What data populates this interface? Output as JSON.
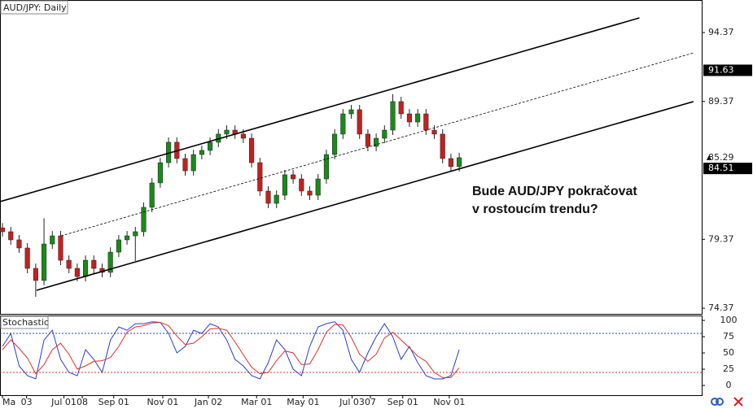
{
  "chart_data": [
    {
      "type": "candlestick",
      "title": "AUD/JPY: Daily",
      "annotation": [
        "Bude AUD/JPY pokračovat",
        "v rostoucím trendu?"
      ],
      "open": [
        80.2,
        79.92,
        79.33,
        78.74,
        77.26,
        76.38,
        79.03,
        79.62,
        77.85,
        77.26,
        76.67,
        77.85,
        77.26,
        76.97,
        78.44,
        79.33,
        79.62,
        79.92,
        81.69,
        83.46,
        84.93,
        86.41,
        85.23,
        84.34,
        85.52,
        85.82,
        86.41,
        87.0,
        87.29,
        87.0,
        86.7,
        84.93,
        82.87,
        81.98,
        82.57,
        84.05,
        83.75,
        82.87,
        82.57,
        83.75,
        85.52,
        87.0,
        88.47,
        88.77,
        87.0,
        86.11,
        86.7,
        87.29,
        89.36,
        88.47,
        87.88,
        88.47,
        87.29,
        87.0,
        85.23,
        84.64
      ],
      "high": [
        80.55,
        80.27,
        79.68,
        79.09,
        77.61,
        80.9,
        79.97,
        79.97,
        78.2,
        77.61,
        78.2,
        78.2,
        77.61,
        78.79,
        79.68,
        79.97,
        80.27,
        82.04,
        83.81,
        85.28,
        86.76,
        86.76,
        85.58,
        85.87,
        86.17,
        86.76,
        87.35,
        87.64,
        87.64,
        87.35,
        87.05,
        85.28,
        83.22,
        82.92,
        84.4,
        84.4,
        84.1,
        83.22,
        84.1,
        85.87,
        87.35,
        88.82,
        89.12,
        89.12,
        87.35,
        87.05,
        87.64,
        89.9,
        89.71,
        88.82,
        88.82,
        88.82,
        87.64,
        87.35,
        85.58,
        85.64
      ],
      "low": [
        79.57,
        78.98,
        78.39,
        76.91,
        75.2,
        76.03,
        78.68,
        77.5,
        76.91,
        76.32,
        76.32,
        76.91,
        76.62,
        76.62,
        78.09,
        78.98,
        77.8,
        79.57,
        81.34,
        83.11,
        84.58,
        84.88,
        83.99,
        83.99,
        85.17,
        85.47,
        86.06,
        86.65,
        86.65,
        86.35,
        84.58,
        82.52,
        81.63,
        81.63,
        82.22,
        83.4,
        82.52,
        82.22,
        82.22,
        83.4,
        85.17,
        86.65,
        88.12,
        86.65,
        85.76,
        85.76,
        86.35,
        86.94,
        88.12,
        87.53,
        87.53,
        86.94,
        86.65,
        84.88,
        84.29,
        84.29
      ],
      "close": [
        79.92,
        79.33,
        78.74,
        77.26,
        76.38,
        79.03,
        79.62,
        77.85,
        77.26,
        76.67,
        77.85,
        77.26,
        76.97,
        78.44,
        79.33,
        79.62,
        79.92,
        81.69,
        83.46,
        84.93,
        86.41,
        85.23,
        84.34,
        85.52,
        85.82,
        86.41,
        87.0,
        87.29,
        87.0,
        86.7,
        84.93,
        82.87,
        81.98,
        82.57,
        84.05,
        83.75,
        82.87,
        82.57,
        83.75,
        85.52,
        87.0,
        88.47,
        88.77,
        87.0,
        86.11,
        86.7,
        87.29,
        89.36,
        88.47,
        87.88,
        88.47,
        87.29,
        87.0,
        85.23,
        84.64,
        85.29
      ],
      "up_color": "#1a8a1a",
      "down_color": "#c42020",
      "trendlines": [
        {
          "x": [
            -0.3,
            76.7
          ],
          "y": [
            82.1,
            95.43
          ],
          "style": "solid"
        },
        {
          "x": [
            4.1,
            83.2
          ],
          "y": [
            75.67,
            89.36
          ],
          "style": "solid"
        },
        {
          "x": [
            7.06,
            83.2
          ],
          "y": [
            79.62,
            92.89
          ],
          "style": "dotted"
        }
      ],
      "price_markers": [
        91.63,
        85.29,
        84.51
      ],
      "price_marker_boxed": [
        true,
        false,
        true
      ],
      "xlim": [
        -0.3,
        84.2
      ],
      "ylim": [
        73.96,
        96.73
      ],
      "yticks": [
        74.37,
        79.37,
        89.37,
        94.37
      ],
      "xticks": [
        {
          "value": 0,
          "label": "Ma"
        },
        {
          "value": 2.9,
          "label": "03"
        },
        {
          "value": 7.4,
          "label": "Jul 01"
        },
        {
          "value": 9.6,
          "label": "08"
        },
        {
          "value": 13.4,
          "label": "Sep 01"
        },
        {
          "value": 19.3,
          "label": "Nov 01"
        },
        {
          "value": 24.8,
          "label": "Jan 02"
        },
        {
          "value": 30.6,
          "label": "Mar 01"
        },
        {
          "value": 36.2,
          "label": "May 01"
        },
        {
          "value": 42.1,
          "label": "Jul 03"
        },
        {
          "value": 44.3,
          "label": "07"
        },
        {
          "value": 48.2,
          "label": "Sep 01"
        },
        {
          "value": 53.8,
          "label": "Nov 01"
        }
      ]
    },
    {
      "type": "line",
      "title": "Stochastic",
      "series": [
        {
          "color": "#2a3bd0",
          "values": [
            60,
            80,
            30,
            15,
            10,
            70,
            85,
            40,
            20,
            15,
            55,
            40,
            20,
            70,
            90,
            85,
            95,
            95,
            98,
            97,
            80,
            50,
            60,
            85,
            80,
            95,
            90,
            70,
            40,
            30,
            15,
            10,
            35,
            70,
            55,
            25,
            15,
            60,
            90,
            95,
            98,
            85,
            40,
            20,
            50,
            75,
            95,
            75,
            40,
            60,
            35,
            15,
            10,
            10,
            15,
            55
          ]
        },
        {
          "color": "#e0302a",
          "values": [
            55,
            70,
            57,
            42,
            18,
            32,
            55,
            65,
            48,
            25,
            30,
            37,
            38,
            43,
            60,
            82,
            90,
            92,
            96,
            97,
            92,
            76,
            63,
            65,
            75,
            87,
            88,
            85,
            67,
            47,
            28,
            18,
            20,
            38,
            53,
            50,
            32,
            33,
            55,
            82,
            94,
            93,
            74,
            48,
            37,
            48,
            73,
            82,
            70,
            58,
            45,
            37,
            20,
            12,
            12,
            27
          ]
        }
      ],
      "levels": [
        {
          "value": 80,
          "color": "#2a3bd0"
        },
        {
          "value": 20,
          "color": "#e0302a"
        }
      ],
      "xlim": [
        -0.3,
        84.2
      ],
      "ylim": [
        -15,
        107.6
      ],
      "yticks": [
        0,
        25,
        50,
        75,
        100
      ]
    }
  ]
}
